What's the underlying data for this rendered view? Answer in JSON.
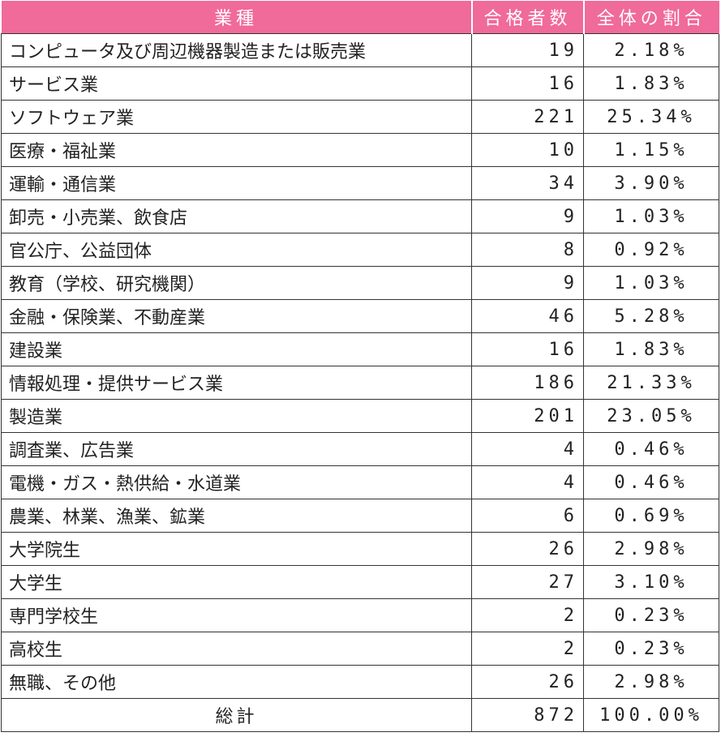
{
  "header": {
    "industry": "業種",
    "passers": "合格者数",
    "ratio": "全体の割合"
  },
  "rows": [
    {
      "name": "コンピュータ及び周辺機器製造または販売業",
      "count": "19",
      "pct": "2.18%"
    },
    {
      "name": "サービス業",
      "count": "16",
      "pct": "1.83%"
    },
    {
      "name": "ソフトウェア業",
      "count": "221",
      "pct": "25.34%"
    },
    {
      "name": "医療・福祉業",
      "count": "10",
      "pct": "1.15%"
    },
    {
      "name": "運輸・通信業",
      "count": "34",
      "pct": "3.90%"
    },
    {
      "name": "卸売・小売業、飲食店",
      "count": "9",
      "pct": "1.03%"
    },
    {
      "name": "官公庁、公益団体",
      "count": "8",
      "pct": "0.92%"
    },
    {
      "name": "教育（学校、研究機関）",
      "count": "9",
      "pct": "1.03%"
    },
    {
      "name": "金融・保険業、不動産業",
      "count": "46",
      "pct": "5.28%"
    },
    {
      "name": "建設業",
      "count": "16",
      "pct": "1.83%"
    },
    {
      "name": "情報処理・提供サービス業",
      "count": "186",
      "pct": "21.33%"
    },
    {
      "name": "製造業",
      "count": "201",
      "pct": "23.05%"
    },
    {
      "name": "調査業、広告業",
      "count": "4",
      "pct": "0.46%"
    },
    {
      "name": "電機・ガス・熱供給・水道業",
      "count": "4",
      "pct": "0.46%"
    },
    {
      "name": "農業、林業、漁業、鉱業",
      "count": "6",
      "pct": "0.69%"
    },
    {
      "name": "大学院生",
      "count": "26",
      "pct": "2.98%"
    },
    {
      "name": "大学生",
      "count": "27",
      "pct": "3.10%"
    },
    {
      "name": "専門学校生",
      "count": "2",
      "pct": "0.23%"
    },
    {
      "name": "高校生",
      "count": "2",
      "pct": "0.23%"
    },
    {
      "name": "無職、その他",
      "count": "26",
      "pct": "2.98%"
    }
  ],
  "total": {
    "label": "総計",
    "count": "872",
    "pct": "100.00%"
  },
  "colors": {
    "header_bg": "#f06a9a",
    "header_text": "#ffffff",
    "border": "#333333"
  }
}
